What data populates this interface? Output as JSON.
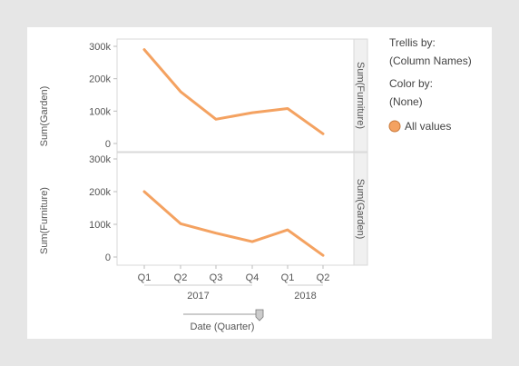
{
  "chart_data": {
    "type": "line",
    "x": [
      "Q1",
      "Q2",
      "Q3",
      "Q4",
      "Q1",
      "Q2"
    ],
    "x_groups": [
      {
        "label": "2017",
        "quarters": [
          "Q1",
          "Q2",
          "Q3",
          "Q4"
        ]
      },
      {
        "label": "2018",
        "quarters": [
          "Q1",
          "Q2"
        ]
      }
    ],
    "xlabel": "Date (Quarter)",
    "ylim": [
      0,
      300000
    ],
    "yticks": [
      0,
      100000,
      200000,
      300000
    ],
    "ytick_labels": [
      "0",
      "100k",
      "200k",
      "300k"
    ],
    "panels": [
      {
        "ylabel": "Sum(Garden)",
        "strip": "Sum(Furniture)",
        "values": [
          290000,
          160000,
          75000,
          95000,
          108000,
          30000
        ]
      },
      {
        "ylabel": "Sum(Furniture)",
        "strip": "Sum(Garden)",
        "values": [
          200000,
          102000,
          73000,
          47000,
          83000,
          5000
        ]
      }
    ],
    "series": [
      {
        "name": "All values",
        "color": "#f4a261"
      }
    ],
    "line_color": "#f4a261"
  },
  "legend": {
    "trellis_label": "Trellis by:",
    "trellis_value": "(Column Names)",
    "color_label": "Color by:",
    "color_value": "(None)",
    "item_label": "All values",
    "item_color": "#f4a261"
  },
  "slider": {
    "value": 1.0
  }
}
